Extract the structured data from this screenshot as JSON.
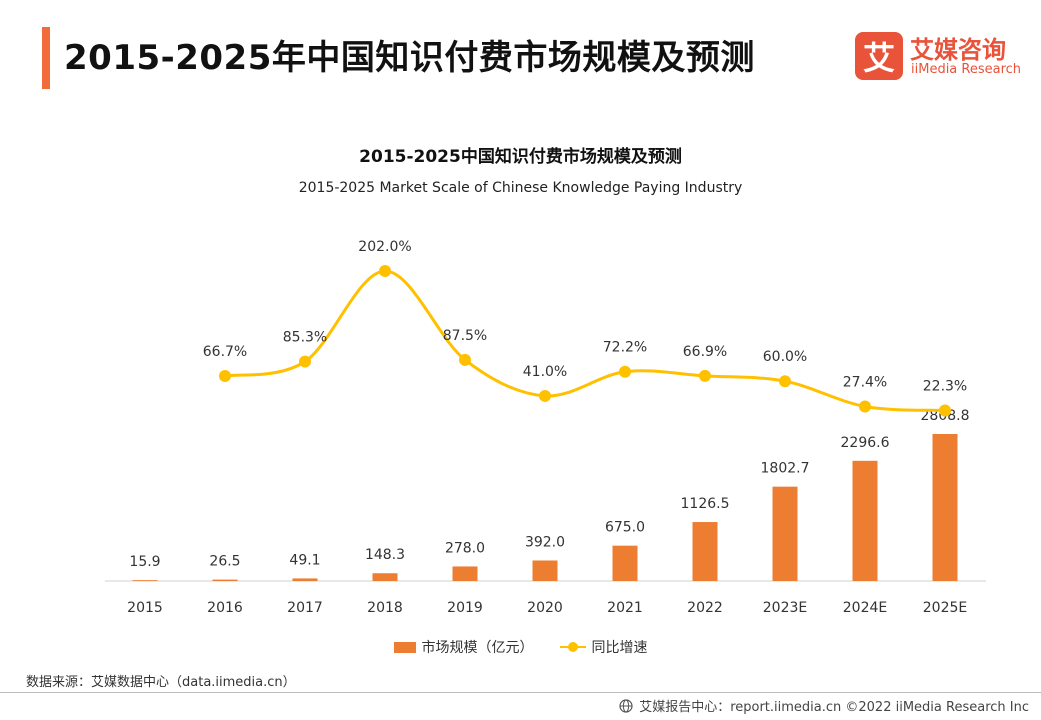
{
  "header": {
    "title": "2015-2025年中国知识付费市场规模及预测",
    "accent_color": "#f26b3a"
  },
  "logo": {
    "mark": "艾",
    "name_cn": "艾媒咨询",
    "name_en": "iiMedia Research",
    "color": "#e8533a"
  },
  "chart_data": {
    "type": "bar",
    "title": "2015-2025中国知识付费市场规模及预测",
    "subtitle": "2015-2025 Market Scale of Chinese Knowledge Paying Industry",
    "categories": [
      "2015",
      "2016",
      "2017",
      "2018",
      "2019",
      "2020",
      "2021",
      "2022",
      "2023E",
      "2024E",
      "2025E"
    ],
    "series": [
      {
        "name": "市场规模（亿元）",
        "type": "bar",
        "color": "#ed7d31",
        "values": [
          15.9,
          26.5,
          49.1,
          148.3,
          278.0,
          392.0,
          675.0,
          1126.5,
          1802.7,
          2296.6,
          2808.8
        ],
        "labels": [
          "15.9",
          "26.5",
          "49.1",
          "148.3",
          "278.0",
          "392.0",
          "675.0",
          "1126.5",
          "1802.7",
          "2296.6",
          "2808.8"
        ]
      },
      {
        "name": "同比增速",
        "type": "line",
        "smooth": true,
        "color": "#ffc000",
        "values": [
          null,
          66.7,
          85.3,
          202.0,
          87.5,
          41.0,
          72.2,
          66.9,
          60.0,
          27.4,
          22.3
        ],
        "labels": [
          "",
          "66.7%",
          "85.3%",
          "202.0%",
          "87.5%",
          "41.0%",
          "72.2%",
          "66.9%",
          "60.0%",
          "27.4%",
          "22.3%"
        ]
      }
    ],
    "grid": false,
    "legend_position": "bottom"
  },
  "source": "数据来源：艾媒数据中心（data.iimedia.cn）",
  "footer": {
    "icon": "globe-icon",
    "text": "艾媒报告中心：report.iimedia.cn   ©2022  iiMedia Research  Inc"
  }
}
